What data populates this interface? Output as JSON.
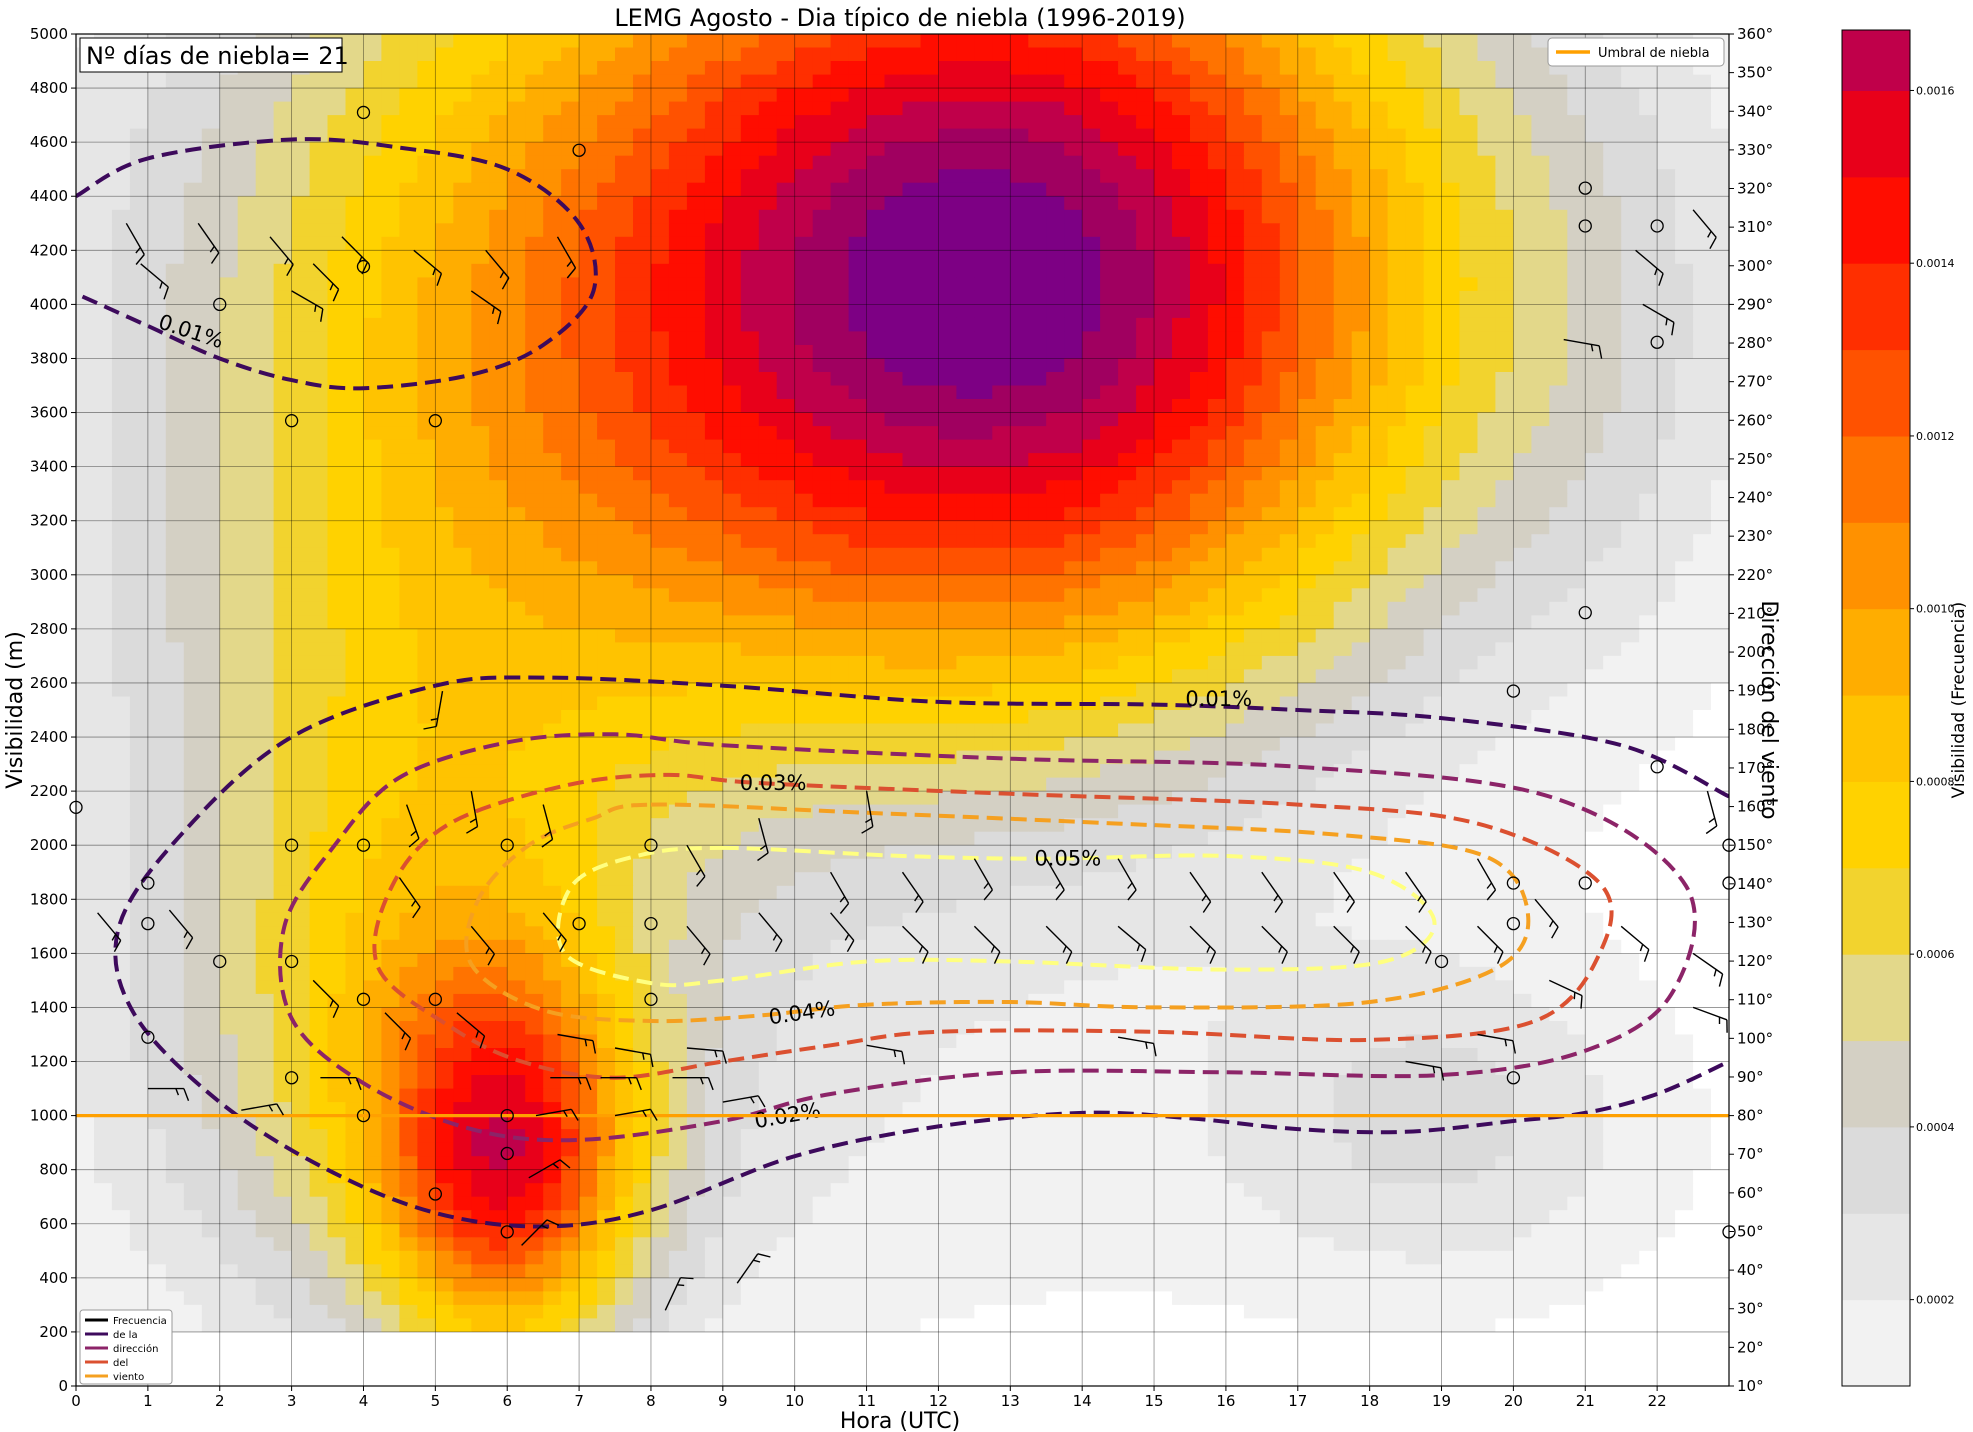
{
  "chart_data": {
    "type": "heatmap",
    "title": "LEMG Agosto  - Dia típico de niebla (1996-2019)",
    "xlabel": "Hora (UTC)",
    "ylabel": "Visibilidad (m)",
    "ylabel_right": "Dirección del viento",
    "colorbar_label": "Visibilidad (Frecuencia)",
    "xlim": [
      0,
      23
    ],
    "ylim": [
      0,
      5000
    ],
    "y2lim": [
      10,
      360
    ],
    "x_ticks": [
      "0",
      "1",
      "2",
      "3",
      "4",
      "5",
      "6",
      "7",
      "8",
      "9",
      "10",
      "11",
      "12",
      "13",
      "14",
      "15",
      "16",
      "17",
      "18",
      "19",
      "20",
      "21",
      "22"
    ],
    "y_ticks": [
      "0",
      "200",
      "400",
      "600",
      "800",
      "1000",
      "1200",
      "1400",
      "1600",
      "1800",
      "2000",
      "2200",
      "2400",
      "2600",
      "2800",
      "3000",
      "3200",
      "3400",
      "3600",
      "3800",
      "4000",
      "4200",
      "4400",
      "4600",
      "4800",
      "5000"
    ],
    "y2_ticks": [
      "10°",
      "20°",
      "30°",
      "40°",
      "50°",
      "60°",
      "70°",
      "80°",
      "90°",
      "100°",
      "110°",
      "120°",
      "130°",
      "140°",
      "150°",
      "160°",
      "170°",
      "180°",
      "190°",
      "200°",
      "210°",
      "220°",
      "230°",
      "240°",
      "250°",
      "260°",
      "270°",
      "280°",
      "290°",
      "300°",
      "310°",
      "320°",
      "330°",
      "340°",
      "350°",
      "360°"
    ],
    "colorbar_ticks": [
      "0.0002",
      "0.0004",
      "0.0006",
      "0.0008",
      "0.0010",
      "0.0012",
      "0.0014",
      "0.0016"
    ],
    "colorbar_levels": [
      "#ffffff",
      "#f2f2f2",
      "#e6e6e6",
      "#dbdbdb",
      "#d4d0c4",
      "#e3d88a",
      "#f2d32e",
      "#ffd200",
      "#ffc300",
      "#ffad00",
      "#ff9100",
      "#ff7300",
      "#ff5200",
      "#ff2f00",
      "#ff0d00",
      "#e8001a",
      "#c0004a",
      "#a00060",
      "#7d0084"
    ],
    "info_box": "Nº días de niebla= 21",
    "threshold": {
      "label": "Umbral de niebla",
      "value": 1000,
      "color": "#ffa000"
    },
    "frequency_blobs": [
      {
        "x": 13,
        "y": 4050,
        "sx": 4.3,
        "sy": 1100,
        "a": 0.00165
      },
      {
        "x": 6,
        "y": 820,
        "sx": 1.25,
        "sy": 500,
        "a": 0.00105
      },
      {
        "x": 5,
        "y": 3300,
        "sx": 3.6,
        "sy": 1700,
        "a": 0.00052
      },
      {
        "x": 4.5,
        "y": 1400,
        "sx": 2.3,
        "sy": 850,
        "a": 0.00042
      },
      {
        "x": 11,
        "y": 4500,
        "sx": 6.5,
        "sy": 1300,
        "a": 0.00025
      },
      {
        "x": 19,
        "y": 1000,
        "sx": 2.0,
        "sy": 450,
        "a": 0.00025
      },
      {
        "x": 11,
        "y": 800,
        "sx": 9.0,
        "sy": 600,
        "a": 0.00012
      },
      {
        "x": 21.5,
        "y": 3800,
        "sx": 1.6,
        "sy": 900,
        "a": 0.00012
      }
    ],
    "contour_legend": {
      "entries": [
        "Frecuencia",
        "de  la",
        "dirección",
        "del",
        "viento"
      ],
      "colors": [
        "#000000",
        "#3d0a5c",
        "#8c2468",
        "#db5030",
        "#f5a020"
      ]
    },
    "contours": [
      {
        "level": "0.01%",
        "color": "#3d0a5c",
        "points": [
          [
            0,
            4400
          ],
          [
            1,
            4540
          ],
          [
            3,
            4610
          ],
          [
            4.5,
            4580
          ],
          [
            6,
            4500
          ],
          [
            7,
            4300
          ],
          [
            7.2,
            4050
          ],
          [
            6.5,
            3850
          ],
          [
            5.5,
            3740
          ],
          [
            4,
            3690
          ],
          [
            3,
            3720
          ],
          [
            2,
            3800
          ],
          [
            1,
            3920
          ],
          [
            0,
            4040
          ]
        ],
        "closed": false,
        "label_at": [
          1.6,
          3900
        ],
        "label_rot": 18
      },
      {
        "level": "0.01%",
        "color": "#3d0a5c",
        "points": [
          [
            23,
            2180
          ],
          [
            21.5,
            2370
          ],
          [
            19,
            2470
          ],
          [
            17,
            2500
          ],
          [
            15,
            2520
          ],
          [
            12,
            2530
          ],
          [
            9,
            2590
          ],
          [
            6.5,
            2620
          ],
          [
            5,
            2590
          ],
          [
            3,
            2400
          ],
          [
            1.5,
            2050
          ],
          [
            0.6,
            1700
          ],
          [
            0.8,
            1380
          ],
          [
            2,
            1050
          ],
          [
            3.5,
            800
          ],
          [
            5,
            640
          ],
          [
            6.5,
            590
          ],
          [
            8,
            650
          ],
          [
            10,
            850
          ],
          [
            12,
            960
          ],
          [
            14,
            1010
          ],
          [
            15.5,
            990
          ],
          [
            17,
            950
          ],
          [
            18.5,
            940
          ],
          [
            20,
            980
          ],
          [
            21,
            1010
          ],
          [
            22,
            1080
          ],
          [
            23,
            1200
          ]
        ],
        "closed": false,
        "label_at": [
          15.9,
          2540
        ],
        "label_rot": 0
      },
      {
        "level": "0.02%",
        "color": "#8c2468",
        "points": [
          [
            9,
            2370
          ],
          [
            13,
            2320
          ],
          [
            17,
            2290
          ],
          [
            20.5,
            2180
          ],
          [
            22.4,
            1850
          ],
          [
            22.2,
            1450
          ],
          [
            21,
            1240
          ],
          [
            19,
            1150
          ],
          [
            16,
            1160
          ],
          [
            13,
            1160
          ],
          [
            10.5,
            1080
          ],
          [
            9,
            980
          ],
          [
            7,
            910
          ],
          [
            5.5,
            950
          ],
          [
            4,
            1120
          ],
          [
            3,
            1360
          ],
          [
            2.9,
            1700
          ],
          [
            3.6,
            2000
          ],
          [
            4.5,
            2250
          ],
          [
            6,
            2380
          ],
          [
            7.5,
            2410
          ]
        ],
        "closed": true,
        "label_at": [
          9.9,
          1000
        ],
        "label_rot": -10
      },
      {
        "level": "0.03%",
        "color": "#db5030",
        "points": [
          [
            9.5,
            2230
          ],
          [
            13,
            2190
          ],
          [
            17,
            2150
          ],
          [
            19.5,
            2080
          ],
          [
            21.2,
            1860
          ],
          [
            21.2,
            1600
          ],
          [
            20.3,
            1350
          ],
          [
            18,
            1280
          ],
          [
            15,
            1310
          ],
          [
            12,
            1310
          ],
          [
            10.5,
            1260
          ],
          [
            9,
            1200
          ],
          [
            7.5,
            1140
          ],
          [
            6.2,
            1200
          ],
          [
            5.2,
            1330
          ],
          [
            4.2,
            1550
          ],
          [
            4.4,
            1850
          ],
          [
            5.2,
            2080
          ],
          [
            6.8,
            2220
          ],
          [
            8.2,
            2260
          ]
        ],
        "closed": true,
        "label_at": [
          9.7,
          2230
        ],
        "label_rot": 0
      },
      {
        "level": "0.04%",
        "color": "#f5a020",
        "points": [
          [
            8,
            2150
          ],
          [
            11,
            2120
          ],
          [
            14.5,
            2080
          ],
          [
            17.5,
            2040
          ],
          [
            19.6,
            1960
          ],
          [
            20.2,
            1750
          ],
          [
            19.8,
            1550
          ],
          [
            18,
            1420
          ],
          [
            15,
            1400
          ],
          [
            13,
            1420
          ],
          [
            11,
            1410
          ],
          [
            9.5,
            1370
          ],
          [
            8,
            1350
          ],
          [
            6.5,
            1390
          ],
          [
            5.5,
            1560
          ],
          [
            5.6,
            1800
          ],
          [
            6.3,
            2000
          ],
          [
            7.2,
            2100
          ]
        ],
        "closed": true,
        "label_at": [
          10.1,
          1380
        ],
        "label_rot": -8
      },
      {
        "level": "0.05%",
        "color": "#ffff80",
        "points": [
          [
            9,
            1990
          ],
          [
            11.5,
            1960
          ],
          [
            13.5,
            1950
          ],
          [
            16,
            1960
          ],
          [
            18,
            1900
          ],
          [
            18.9,
            1720
          ],
          [
            18.2,
            1570
          ],
          [
            16,
            1540
          ],
          [
            13,
            1570
          ],
          [
            11,
            1570
          ],
          [
            9,
            1500
          ],
          [
            8,
            1490
          ],
          [
            6.8,
            1600
          ],
          [
            6.9,
            1850
          ],
          [
            7.8,
            1960
          ]
        ],
        "closed": true,
        "label_at": [
          13.8,
          1950
        ],
        "label_rot": 0
      }
    ],
    "wind_obs": [
      {
        "x": 2,
        "y": 4000
      },
      {
        "x": 3,
        "y": 3570
      },
      {
        "x": 4,
        "y": 4140
      },
      {
        "x": 4,
        "y": 4710
      },
      {
        "x": 5,
        "y": 3570
      },
      {
        "x": 7,
        "y": 4570
      },
      {
        "x": 21,
        "y": 4430
      },
      {
        "x": 21,
        "y": 4290
      },
      {
        "x": 22,
        "y": 4290
      },
      {
        "x": 22,
        "y": 3860
      },
      {
        "x": 21,
        "y": 2860
      },
      {
        "x": 20,
        "y": 2570
      },
      {
        "x": 22,
        "y": 2290
      },
      {
        "x": 0,
        "y": 2140
      },
      {
        "x": 1,
        "y": 1860
      },
      {
        "x": 1,
        "y": 1710
      },
      {
        "x": 1,
        "y": 1290
      },
      {
        "x": 2,
        "y": 1570
      },
      {
        "x": 3,
        "y": 2000
      },
      {
        "x": 3,
        "y": 1570
      },
      {
        "x": 3,
        "y": 1140
      },
      {
        "x": 4,
        "y": 2000
      },
      {
        "x": 4,
        "y": 1430
      },
      {
        "x": 4,
        "y": 1000
      },
      {
        "x": 5,
        "y": 1430
      },
      {
        "x": 5,
        "y": 710
      },
      {
        "x": 6,
        "y": 2000
      },
      {
        "x": 6,
        "y": 1000
      },
      {
        "x": 6,
        "y": 860
      },
      {
        "x": 6,
        "y": 570
      },
      {
        "x": 7,
        "y": 1710
      },
      {
        "x": 8,
        "y": 2000
      },
      {
        "x": 8,
        "y": 1710
      },
      {
        "x": 8,
        "y": 1430
      },
      {
        "x": 19,
        "y": 1570
      },
      {
        "x": 20,
        "y": 1860
      },
      {
        "x": 20,
        "y": 1710
      },
      {
        "x": 20,
        "y": 1140
      },
      {
        "x": 21,
        "y": 1860
      },
      {
        "x": 23,
        "y": 2000
      },
      {
        "x": 23,
        "y": 1860
      },
      {
        "x": 23,
        "y": 570
      }
    ],
    "wind_barbs": [
      {
        "x": 0.7,
        "y": 4300,
        "d": 150
      },
      {
        "x": 1.7,
        "y": 4300,
        "d": 145
      },
      {
        "x": 2.7,
        "y": 4250,
        "d": 140
      },
      {
        "x": 3.7,
        "y": 4250,
        "d": 135
      },
      {
        "x": 4.7,
        "y": 4200,
        "d": 130
      },
      {
        "x": 5.7,
        "y": 4200,
        "d": 140
      },
      {
        "x": 6.7,
        "y": 4250,
        "d": 150
      },
      {
        "x": 0.9,
        "y": 4150,
        "d": 130
      },
      {
        "x": 3.3,
        "y": 4150,
        "d": 135
      },
      {
        "x": 5.5,
        "y": 4050,
        "d": 125
      },
      {
        "x": 3,
        "y": 4050,
        "d": 120
      },
      {
        "x": 22.5,
        "y": 4350,
        "d": 140
      },
      {
        "x": 21.7,
        "y": 4200,
        "d": 130
      },
      {
        "x": 21.8,
        "y": 4000,
        "d": 120
      },
      {
        "x": 20.7,
        "y": 3870,
        "d": 100
      },
      {
        "x": 0.3,
        "y": 1750,
        "d": 140
      },
      {
        "x": 1.3,
        "y": 1760,
        "d": 140
      },
      {
        "x": 3.3,
        "y": 1500,
        "d": 135
      },
      {
        "x": 2.3,
        "y": 1020,
        "d": 80
      },
      {
        "x": 3.4,
        "y": 1140,
        "d": 90
      },
      {
        "x": 4.3,
        "y": 1380,
        "d": 135
      },
      {
        "x": 5.3,
        "y": 1380,
        "d": 130
      },
      {
        "x": 4.5,
        "y": 1880,
        "d": 145
      },
      {
        "x": 4.6,
        "y": 2150,
        "d": 160
      },
      {
        "x": 5.5,
        "y": 1700,
        "d": 140
      },
      {
        "x": 5.5,
        "y": 2200,
        "d": 170
      },
      {
        "x": 6.5,
        "y": 1750,
        "d": 140
      },
      {
        "x": 6.5,
        "y": 2150,
        "d": 165
      },
      {
        "x": 6.7,
        "y": 1300,
        "d": 100
      },
      {
        "x": 6.6,
        "y": 1140,
        "d": 90
      },
      {
        "x": 7.3,
        "y": 1140,
        "d": 90
      },
      {
        "x": 7.5,
        "y": 1250,
        "d": 100
      },
      {
        "x": 6.4,
        "y": 1000,
        "d": 80
      },
      {
        "x": 7.5,
        "y": 1000,
        "d": 80
      },
      {
        "x": 6.3,
        "y": 770,
        "d": 60
      },
      {
        "x": 6.2,
        "y": 520,
        "d": 45
      },
      {
        "x": 8.3,
        "y": 1140,
        "d": 90
      },
      {
        "x": 8.5,
        "y": 1250,
        "d": 95
      },
      {
        "x": 8.5,
        "y": 1700,
        "d": 140
      },
      {
        "x": 8.5,
        "y": 2000,
        "d": 150
      },
      {
        "x": 9.5,
        "y": 1750,
        "d": 140
      },
      {
        "x": 9.5,
        "y": 2100,
        "d": 165
      },
      {
        "x": 10.5,
        "y": 1750,
        "d": 140
      },
      {
        "x": 10.5,
        "y": 1900,
        "d": 150
      },
      {
        "x": 11.5,
        "y": 1700,
        "d": 135
      },
      {
        "x": 11.5,
        "y": 1900,
        "d": 145
      },
      {
        "x": 12.5,
        "y": 1700,
        "d": 135
      },
      {
        "x": 12.5,
        "y": 1950,
        "d": 150
      },
      {
        "x": 13.5,
        "y": 1700,
        "d": 135
      },
      {
        "x": 13.5,
        "y": 1950,
        "d": 150
      },
      {
        "x": 14.5,
        "y": 1700,
        "d": 130
      },
      {
        "x": 14.5,
        "y": 1950,
        "d": 150
      },
      {
        "x": 15.5,
        "y": 1700,
        "d": 135
      },
      {
        "x": 15.5,
        "y": 1900,
        "d": 145
      },
      {
        "x": 16.5,
        "y": 1700,
        "d": 135
      },
      {
        "x": 16.5,
        "y": 1900,
        "d": 145
      },
      {
        "x": 17.5,
        "y": 1700,
        "d": 135
      },
      {
        "x": 17.5,
        "y": 1900,
        "d": 145
      },
      {
        "x": 18.5,
        "y": 1700,
        "d": 135
      },
      {
        "x": 18.5,
        "y": 1900,
        "d": 145
      },
      {
        "x": 19.5,
        "y": 1700,
        "d": 135
      },
      {
        "x": 19.5,
        "y": 1950,
        "d": 150
      },
      {
        "x": 20.5,
        "y": 1500,
        "d": 115
      },
      {
        "x": 20.3,
        "y": 1800,
        "d": 140
      },
      {
        "x": 22.5,
        "y": 1600,
        "d": 125
      },
      {
        "x": 21.5,
        "y": 1700,
        "d": 130
      },
      {
        "x": 22.5,
        "y": 1400,
        "d": 110
      },
      {
        "x": 18.5,
        "y": 1200,
        "d": 100
      },
      {
        "x": 19.5,
        "y": 1300,
        "d": 100
      },
      {
        "x": 11,
        "y": 1260,
        "d": 100
      },
      {
        "x": 14.5,
        "y": 1290,
        "d": 100
      },
      {
        "x": 9,
        "y": 1050,
        "d": 80
      },
      {
        "x": 8.2,
        "y": 280,
        "d": 25
      },
      {
        "x": 9.2,
        "y": 380,
        "d": 35
      },
      {
        "x": 22.7,
        "y": 2200,
        "d": 165
      },
      {
        "x": 23.3,
        "y": 2000,
        "d": 150
      },
      {
        "x": 11,
        "y": 2200,
        "d": 170
      },
      {
        "x": 5.1,
        "y": 2570,
        "d": 190
      },
      {
        "x": 1,
        "y": 1100,
        "d": 90
      }
    ]
  }
}
